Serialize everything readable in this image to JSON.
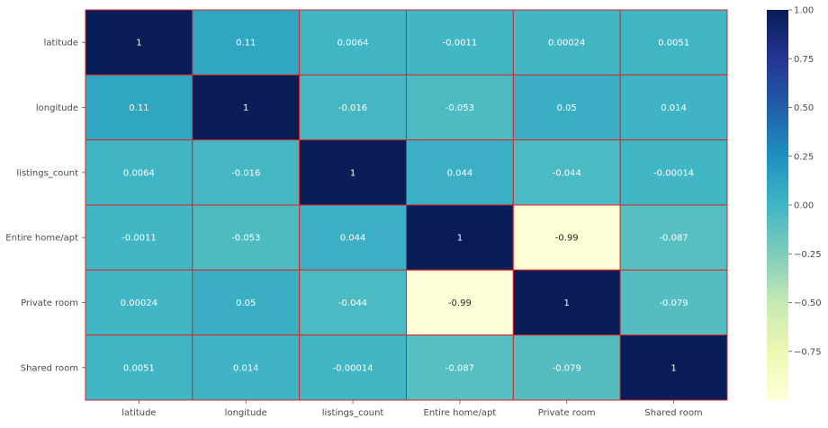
{
  "chart_data": {
    "type": "heatmap",
    "title": "",
    "xlabel": "",
    "ylabel": "",
    "x_categories": [
      "latitude",
      "longitude",
      "listings_count",
      "Entire home/apt",
      "Private room",
      "Shared room"
    ],
    "y_categories": [
      "latitude",
      "longitude",
      "listings_count",
      "Entire home/apt",
      "Private room",
      "Shared room"
    ],
    "values": [
      [
        1,
        0.11,
        0.0064,
        -0.0011,
        0.00024,
        0.0051
      ],
      [
        0.11,
        1,
        -0.016,
        -0.053,
        0.05,
        0.014
      ],
      [
        0.0064,
        -0.016,
        1,
        0.044,
        -0.044,
        -0.00014
      ],
      [
        -0.0011,
        -0.053,
        0.044,
        1,
        -0.99,
        -0.087
      ],
      [
        0.00024,
        0.05,
        -0.044,
        -0.99,
        1,
        -0.079
      ],
      [
        0.0051,
        0.014,
        -0.00014,
        -0.087,
        -0.079,
        1
      ]
    ],
    "cell_labels": [
      [
        "1",
        "0.11",
        "0.0064",
        "-0.0011",
        "0.00024",
        "0.0051"
      ],
      [
        "0.11",
        "1",
        "-0.016",
        "-0.053",
        "0.05",
        "0.014"
      ],
      [
        "0.0064",
        "-0.016",
        "1",
        "0.044",
        "-0.044",
        "-0.00014"
      ],
      [
        "-0.0011",
        "-0.053",
        "0.044",
        "1",
        "-0.99",
        "-0.087"
      ],
      [
        "0.00024",
        "0.05",
        "-0.044",
        "-0.99",
        "1",
        "-0.079"
      ],
      [
        "0.0051",
        "0.014",
        "-0.00014",
        "-0.087",
        "-0.079",
        "1"
      ]
    ],
    "colormap": "YlGnBu",
    "vmin": -1,
    "vmax": 1,
    "colorbar_ticks": [
      1.0,
      0.75,
      0.5,
      0.25,
      0.0,
      -0.25,
      -0.5,
      -0.75
    ],
    "colorbar_tick_labels": [
      "1.00",
      "0.75",
      "0.50",
      "0.25",
      "0.00",
      "−0.25",
      "−0.50",
      "−0.75"
    ],
    "cell_border_color": "#d62728",
    "grid": false
  }
}
